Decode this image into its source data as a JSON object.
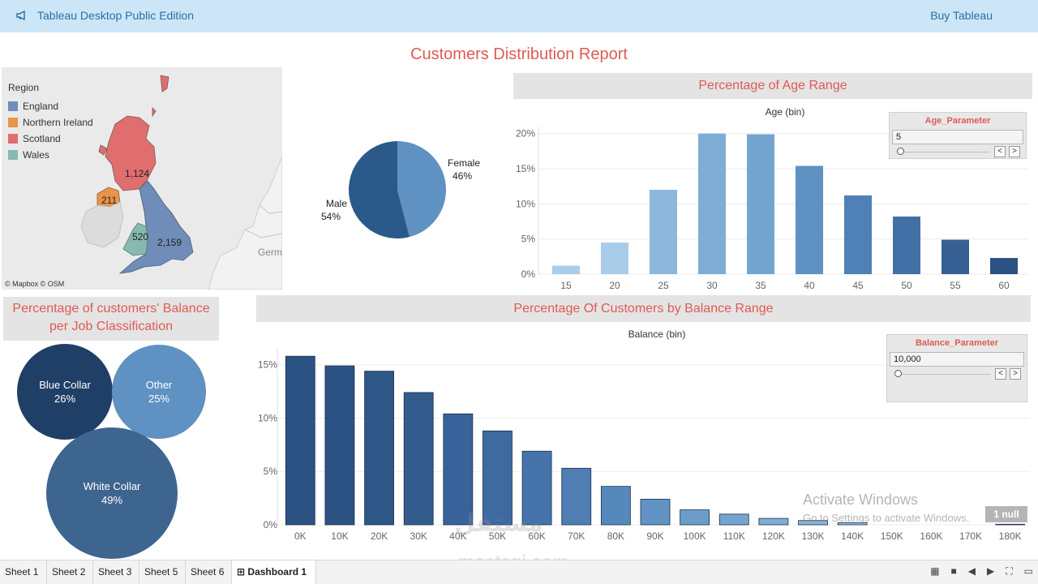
{
  "app": {
    "title": "Tableau Desktop Public Edition",
    "buy_label": "Buy Tableau"
  },
  "dashboard": {
    "title": "Customers Distribution Report"
  },
  "map": {
    "legend_title": "Region",
    "regions": [
      {
        "name": "England",
        "color": "#6f8db8",
        "value": "2,159"
      },
      {
        "name": "Northern Ireland",
        "color": "#e8944a",
        "value": "211"
      },
      {
        "name": "Scotland",
        "color": "#e06e6e",
        "value": "1,124"
      },
      {
        "name": "Wales",
        "color": "#86b9b0",
        "value": "520"
      }
    ],
    "attribution": "© Mapbox © OSM",
    "germany_label": "Germ"
  },
  "gender_pie": {
    "chart_data": {
      "type": "pie",
      "slices": [
        {
          "label": "Female",
          "pct_label": "46%",
          "value": 46,
          "color": "#5f91c2"
        },
        {
          "label": "Male",
          "pct_label": "54%",
          "value": 54,
          "color": "#2b5a8a"
        }
      ]
    }
  },
  "age_panel": {
    "title": "Percentage of Age Range",
    "axis_title": "Age (bin)",
    "chart_data": {
      "type": "bar",
      "categories": [
        "15",
        "20",
        "25",
        "30",
        "35",
        "40",
        "45",
        "50",
        "55",
        "60"
      ],
      "values": [
        1.2,
        4.5,
        12.0,
        20.0,
        19.9,
        15.4,
        11.2,
        8.2,
        4.9,
        2.3
      ],
      "ylim": [
        0,
        21
      ],
      "yticks": [
        {
          "v": 0,
          "label": "0%"
        },
        {
          "v": 5,
          "label": "5%"
        },
        {
          "v": 10,
          "label": "10%"
        },
        {
          "v": 15,
          "label": "15%"
        },
        {
          "v": 20,
          "label": "20%"
        }
      ],
      "colors": [
        "#a9cde9",
        "#a9cde9",
        "#8db8dc",
        "#7fadd6",
        "#74a5d0",
        "#5f91c2",
        "#4f81b6",
        "#426fa6",
        "#365f93",
        "#2b5283"
      ]
    },
    "parameter": {
      "label": "Age_Parameter",
      "value": "5",
      "prev": "<",
      "next": ">"
    }
  },
  "job_panel": {
    "title_line1": "Percentage of customers' Balance",
    "title_line2": "per Job Classification",
    "bubbles": [
      {
        "name": "Blue Collar",
        "pct": "26%",
        "color": "#1f3f66"
      },
      {
        "name": "Other",
        "pct": "25%",
        "color": "#5f91c2"
      },
      {
        "name": "White Collar",
        "pct": "49%",
        "color": "#3e6590"
      }
    ]
  },
  "balance_panel": {
    "title": "Percentage Of Customers by Balance Range",
    "axis_title": "Balance (bin)",
    "chart_data": {
      "type": "bar",
      "categories": [
        "0K",
        "10K",
        "20K",
        "30K",
        "40K",
        "50K",
        "60K",
        "70K",
        "80K",
        "90K",
        "100K",
        "110K",
        "120K",
        "130K",
        "140K",
        "150K",
        "160K",
        "170K",
        "180K"
      ],
      "values": [
        15.8,
        14.9,
        14.4,
        12.4,
        10.4,
        8.8,
        6.9,
        5.3,
        3.6,
        2.4,
        1.4,
        1.0,
        0.6,
        0.4,
        0.2,
        0,
        0,
        0,
        0.05
      ],
      "ylim": [
        0,
        16.5
      ],
      "yticks": [
        {
          "v": 0,
          "label": "0%"
        },
        {
          "v": 5,
          "label": "5%"
        },
        {
          "v": 10,
          "label": "10%"
        },
        {
          "v": 15,
          "label": "15%"
        }
      ],
      "colors": [
        "#2b5283",
        "#2b5283",
        "#2f5787",
        "#335c8c",
        "#38629a",
        "#3e6aa2",
        "#4773ac",
        "#4f7db4",
        "#5788bc",
        "#6193c4",
        "#6b9cca",
        "#74a5d0",
        "#7fadd6",
        "#8ab5da",
        "#97bfe0",
        "#a3c7e4",
        "#a9cde9",
        "#b3d3ec",
        "#2b5283"
      ]
    },
    "parameter": {
      "label": "Balance_Parameter",
      "value": "10,000",
      "prev": "<",
      "next": ">"
    }
  },
  "tabs": [
    {
      "label": "Sheet 1",
      "active": false
    },
    {
      "label": "Sheet 2",
      "active": false
    },
    {
      "label": "Sheet 3",
      "active": false
    },
    {
      "label": "Sheet 5",
      "active": false
    },
    {
      "label": "Sheet 6",
      "active": false
    },
    {
      "label": "Dashboard 1",
      "active": true
    }
  ],
  "overlay": {
    "activate_line1": "Activate Windows",
    "activate_line2": "Go to Settings to activate Windows.",
    "null_badge": "1 null",
    "watermark_arabic": "مستقل",
    "watermark_latin": "mostaqi.com"
  }
}
